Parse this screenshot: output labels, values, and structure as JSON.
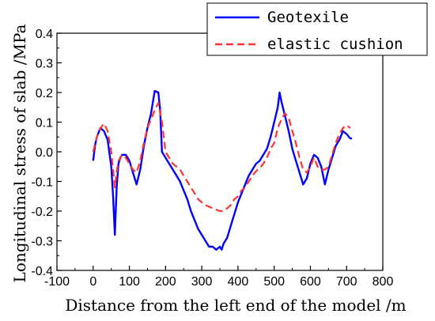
{
  "chart_data": {
    "type": "line",
    "xlabel": "Distance from the left end of the model /m",
    "ylabel": "Longitudinal stress of slab /MPa",
    "xlim": [
      -100,
      800
    ],
    "ylim": [
      -0.4,
      0.4
    ],
    "xticks": [
      -100,
      0,
      100,
      200,
      300,
      400,
      500,
      600,
      700,
      800
    ],
    "yticks": [
      -0.4,
      -0.3,
      -0.2,
      -0.1,
      0.0,
      0.1,
      0.2,
      0.3,
      0.4
    ],
    "xtick_labels": [
      "-100",
      "0",
      "100",
      "200",
      "300",
      "400",
      "500",
      "600",
      "700",
      "800"
    ],
    "ytick_labels": [
      "-0.4",
      "-0.3",
      "-0.2",
      "-0.1",
      "0.0",
      "0.1",
      "0.2",
      "0.3",
      "0.4"
    ],
    "grid": false,
    "legend_position": "top-right",
    "series": [
      {
        "name": "Geotexile",
        "color": "#0000ff",
        "style": "solid",
        "x": [
          0,
          5,
          10,
          20,
          30,
          40,
          50,
          55,
          60,
          65,
          70,
          75,
          80,
          90,
          100,
          110,
          120,
          130,
          140,
          150,
          160,
          170,
          180,
          185,
          190,
          200,
          210,
          220,
          230,
          240,
          250,
          260,
          270,
          280,
          290,
          300,
          310,
          320,
          330,
          340,
          350,
          355,
          360,
          370,
          380,
          390,
          400,
          410,
          420,
          430,
          440,
          450,
          460,
          470,
          480,
          490,
          500,
          510,
          515,
          520,
          530,
          540,
          550,
          560,
          570,
          580,
          590,
          600,
          610,
          620,
          630,
          640,
          650,
          660,
          670,
          680,
          690,
          700,
          710,
          715
        ],
        "y": [
          -0.03,
          0.02,
          0.05,
          0.08,
          0.07,
          0.04,
          -0.05,
          -0.15,
          -0.28,
          -0.12,
          -0.04,
          -0.02,
          -0.01,
          -0.01,
          -0.03,
          -0.07,
          -0.11,
          -0.06,
          0.02,
          0.08,
          0.13,
          0.205,
          0.2,
          0.14,
          0.0,
          -0.02,
          -0.04,
          -0.06,
          -0.08,
          -0.1,
          -0.13,
          -0.16,
          -0.2,
          -0.23,
          -0.26,
          -0.28,
          -0.3,
          -0.32,
          -0.32,
          -0.33,
          -0.32,
          -0.33,
          -0.31,
          -0.29,
          -0.25,
          -0.21,
          -0.17,
          -0.14,
          -0.11,
          -0.08,
          -0.06,
          -0.04,
          -0.03,
          -0.01,
          0.01,
          0.05,
          0.1,
          0.15,
          0.2,
          0.17,
          0.12,
          0.07,
          0.01,
          -0.03,
          -0.07,
          -0.11,
          -0.09,
          -0.04,
          -0.01,
          -0.02,
          -0.05,
          -0.11,
          -0.06,
          -0.02,
          0.02,
          0.04,
          0.07,
          0.06,
          0.045,
          0.045
        ]
      },
      {
        "name": "elastic cushion",
        "color": "#ff3333",
        "style": "dashed",
        "x": [
          0,
          10,
          20,
          30,
          40,
          50,
          55,
          60,
          65,
          70,
          80,
          90,
          100,
          110,
          120,
          130,
          140,
          150,
          160,
          170,
          180,
          190,
          200,
          210,
          220,
          230,
          240,
          250,
          260,
          270,
          280,
          290,
          300,
          310,
          320,
          330,
          340,
          350,
          360,
          370,
          380,
          390,
          400,
          410,
          420,
          430,
          440,
          450,
          460,
          470,
          480,
          490,
          500,
          510,
          520,
          530,
          540,
          550,
          560,
          570,
          580,
          590,
          600,
          610,
          620,
          630,
          640,
          650,
          660,
          670,
          680,
          690,
          700,
          710
        ],
        "y": [
          0.0,
          0.05,
          0.08,
          0.095,
          0.07,
          0.0,
          -0.06,
          -0.12,
          -0.07,
          -0.03,
          -0.01,
          -0.02,
          -0.04,
          -0.06,
          -0.07,
          -0.03,
          0.03,
          0.08,
          0.11,
          0.14,
          0.165,
          0.1,
          0.0,
          -0.02,
          -0.04,
          -0.05,
          -0.06,
          -0.08,
          -0.1,
          -0.12,
          -0.14,
          -0.16,
          -0.17,
          -0.18,
          -0.185,
          -0.19,
          -0.195,
          -0.2,
          -0.2,
          -0.19,
          -0.18,
          -0.16,
          -0.15,
          -0.13,
          -0.12,
          -0.1,
          -0.08,
          -0.065,
          -0.055,
          -0.04,
          -0.02,
          0.01,
          0.03,
          0.08,
          0.11,
          0.13,
          0.115,
          0.07,
          0.03,
          -0.02,
          -0.06,
          -0.07,
          -0.05,
          -0.02,
          -0.05,
          -0.06,
          -0.06,
          -0.05,
          -0.01,
          0.03,
          0.06,
          0.08,
          0.09,
          0.08
        ]
      }
    ]
  }
}
